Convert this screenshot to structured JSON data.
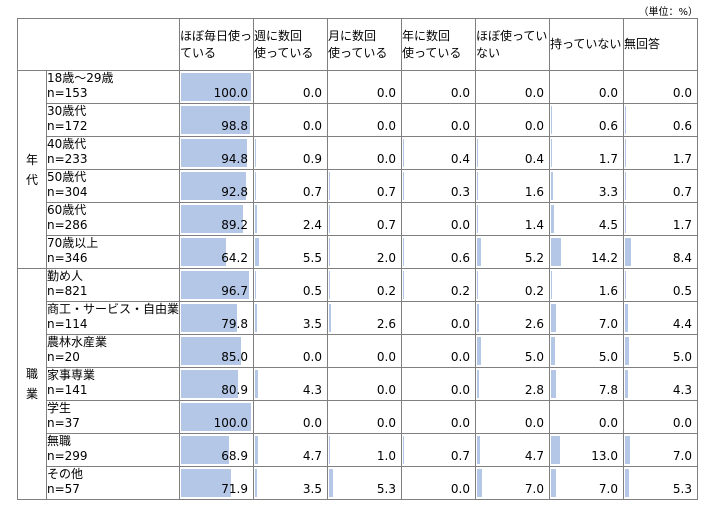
{
  "unit_label": "（単位：%）",
  "bar_color": "#b4c7e7",
  "columns": [
    [
      "ほぼ毎日使っ",
      "ている"
    ],
    [
      "週に数回",
      "使っている"
    ],
    [
      "月に数回",
      "使っている"
    ],
    [
      "年に数回",
      "使っている"
    ],
    [
      "ほぼ使ってい",
      "ない"
    ],
    [
      "持っていない",
      ""
    ],
    [
      "無回答",
      ""
    ]
  ],
  "groups": [
    {
      "label": [
        "年",
        "代"
      ],
      "rows": [
        {
          "name": "18歳～29歳",
          "n": "n=153",
          "values": [
            "100.0",
            "0.0",
            "0.0",
            "0.0",
            "0.0",
            "0.0",
            "0.0"
          ]
        },
        {
          "name": "30歳代",
          "n": "n=172",
          "values": [
            "98.8",
            "0.0",
            "0.0",
            "0.0",
            "0.0",
            "0.6",
            "0.6"
          ]
        },
        {
          "name": "40歳代",
          "n": "n=233",
          "values": [
            "94.8",
            "0.9",
            "0.0",
            "0.4",
            "0.4",
            "1.7",
            "1.7"
          ]
        },
        {
          "name": "50歳代",
          "n": "n=304",
          "values": [
            "92.8",
            "0.7",
            "0.7",
            "0.3",
            "1.6",
            "3.3",
            "0.7"
          ]
        },
        {
          "name": "60歳代",
          "n": "n=286",
          "values": [
            "89.2",
            "2.4",
            "0.7",
            "0.0",
            "1.4",
            "4.5",
            "1.7"
          ]
        },
        {
          "name": "70歳以上",
          "n": "n=346",
          "values": [
            "64.2",
            "5.5",
            "2.0",
            "0.6",
            "5.2",
            "14.2",
            "8.4"
          ]
        }
      ]
    },
    {
      "label": [
        "職",
        "業"
      ],
      "rows": [
        {
          "name": "勤め人",
          "n": "n=821",
          "values": [
            "96.7",
            "0.5",
            "0.2",
            "0.2",
            "0.2",
            "1.6",
            "0.5"
          ]
        },
        {
          "name": "商工・サービス・自由業",
          "n": "n=114",
          "values": [
            "79.8",
            "3.5",
            "2.6",
            "0.0",
            "2.6",
            "7.0",
            "4.4"
          ]
        },
        {
          "name": "農林水産業",
          "n": "n=20",
          "values": [
            "85.0",
            "0.0",
            "0.0",
            "0.0",
            "5.0",
            "5.0",
            "5.0"
          ]
        },
        {
          "name": "家事専業",
          "n": "n=141",
          "values": [
            "80.9",
            "4.3",
            "0.0",
            "0.0",
            "2.8",
            "7.8",
            "4.3"
          ]
        },
        {
          "name": "学生",
          "n": "n=37",
          "values": [
            "100.0",
            "0.0",
            "0.0",
            "0.0",
            "0.0",
            "0.0",
            "0.0"
          ]
        },
        {
          "name": "無職",
          "n": "n=299",
          "values": [
            "68.9",
            "4.7",
            "1.0",
            "0.7",
            "4.7",
            "13.0",
            "7.0"
          ]
        },
        {
          "name": "その他",
          "n": "n=57",
          "values": [
            "71.9",
            "3.5",
            "5.3",
            "0.0",
            "7.0",
            "7.0",
            "5.3"
          ]
        }
      ]
    }
  ]
}
